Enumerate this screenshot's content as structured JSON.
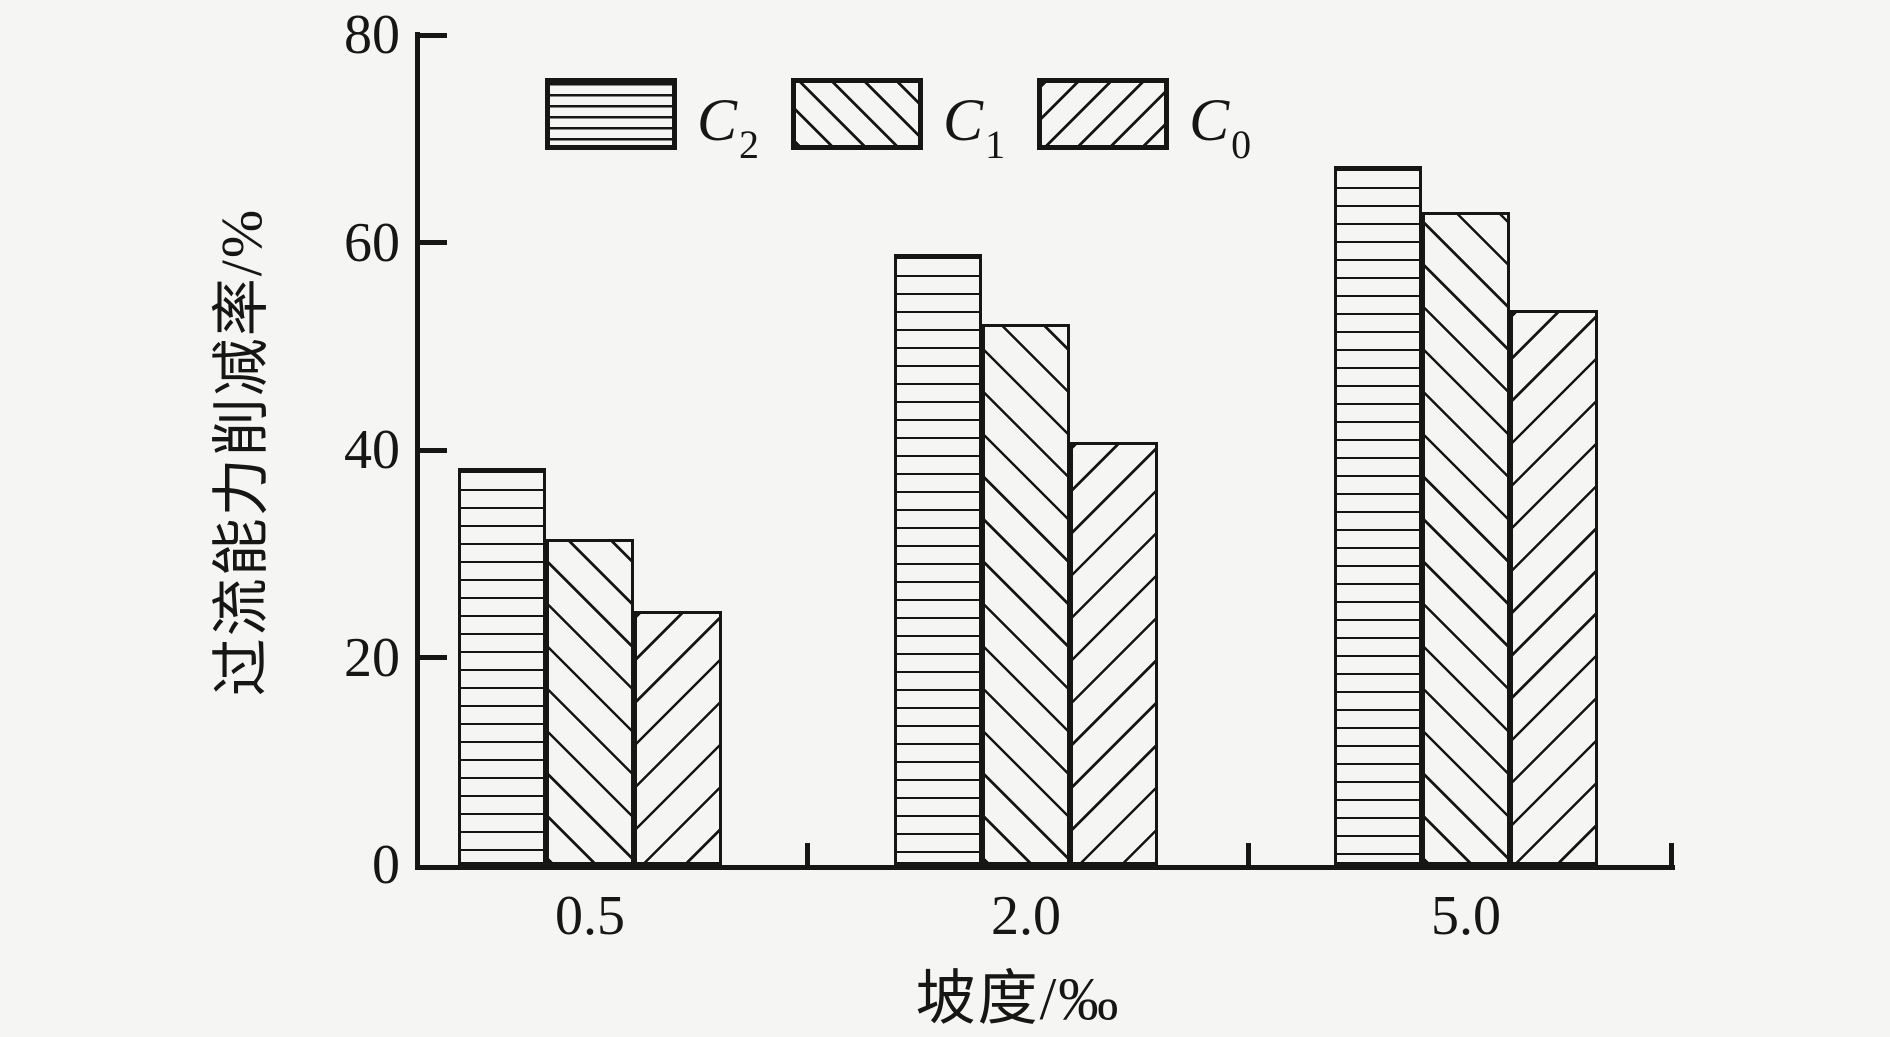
{
  "chart_data": {
    "type": "bar",
    "title": "",
    "xlabel": "坡度/‰",
    "ylabel": "过流能力削减率/%",
    "categories": [
      "0.5",
      "2.0",
      "5.0"
    ],
    "series": [
      {
        "name": "C2",
        "symbol": "C",
        "sub": "2",
        "hatch": "horizontal",
        "values": [
          38.3,
          58.9,
          67.4
        ]
      },
      {
        "name": "C1",
        "symbol": "C",
        "sub": "1",
        "hatch": "backslash",
        "values": [
          31.4,
          52.1,
          62.9
        ]
      },
      {
        "name": "C0",
        "symbol": "C",
        "sub": "0",
        "hatch": "slash",
        "values": [
          24.5,
          40.8,
          53.5
        ]
      }
    ],
    "ylim": [
      0,
      80
    ],
    "yticks": [
      0,
      20,
      40,
      60,
      80
    ],
    "grid": false,
    "legend_position": "top-inside",
    "ink_color": "#161616",
    "background_color": "#f5f5f3"
  }
}
